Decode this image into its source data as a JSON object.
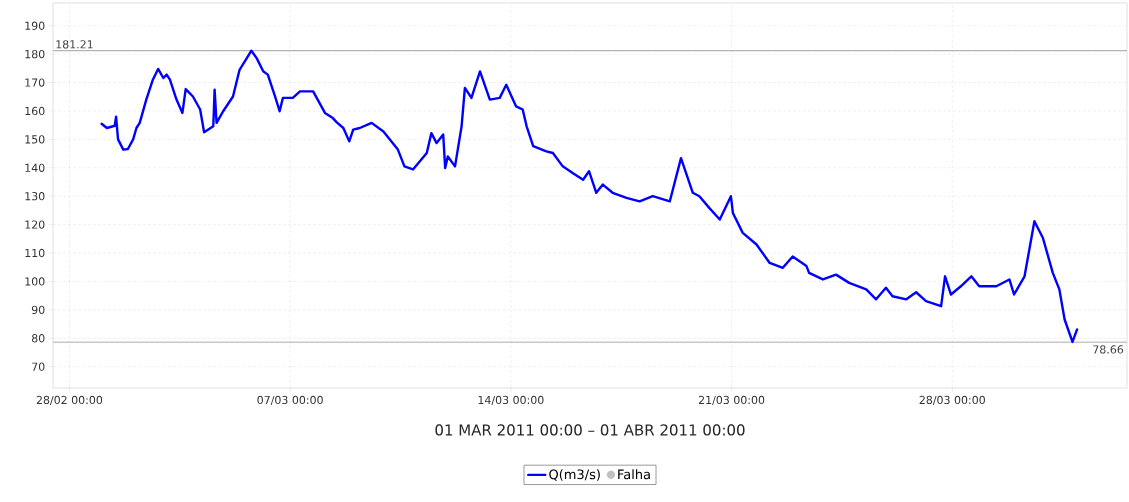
{
  "chart_data": {
    "type": "line",
    "xlabel": "01 MAR 2011 00:00 – 01 ABR 2011 00:00",
    "x": [
      "2011-03-01T00:30",
      "2011-03-01T04:30",
      "2011-03-01T10:30",
      "2011-03-01T11:30",
      "2011-03-01T13:00",
      "2011-03-01T17:00",
      "2011-03-01T20:30",
      "2011-03-02T00:30",
      "2011-03-02T03:00",
      "2011-03-02T05:30",
      "2011-03-02T10:30",
      "2011-03-02T15:30",
      "2011-03-02T19:30",
      "2011-03-02T23:30",
      "2011-03-03T02:00",
      "2011-03-03T04:30",
      "2011-03-03T09:30",
      "2011-03-03T14:00",
      "2011-03-03T16:30",
      "2011-03-03T22:00",
      "2011-03-04T03:30",
      "2011-03-04T06:30",
      "2011-03-04T13:30",
      "2011-03-04T14:30",
      "2011-03-04T16:00",
      "2011-03-04T21:00",
      "2011-03-05T04:30",
      "2011-03-05T09:30",
      "2011-03-05T18:30",
      "2011-03-05T22:30",
      "2011-03-06T03:30",
      "2011-03-06T07:00",
      "2011-03-06T12:30",
      "2011-03-06T16:00",
      "2011-03-06T18:30",
      "2011-03-07T02:00",
      "2011-03-07T07:30",
      "2011-03-07T17:30",
      "2011-03-08T02:30",
      "2011-03-08T08:30",
      "2011-03-08T11:30",
      "2011-03-08T16:30",
      "2011-03-08T21:00",
      "2011-03-09T00:00",
      "2011-03-09T05:00",
      "2011-03-09T14:00",
      "2011-03-09T23:00",
      "2011-03-10T10:00",
      "2011-03-10T15:00",
      "2011-03-10T21:30",
      "2011-03-11T08:00",
      "2011-03-11T11:30",
      "2011-03-11T15:30",
      "2011-03-11T20:30",
      "2011-03-11T22:00",
      "2011-03-12T00:00",
      "2011-03-12T05:30",
      "2011-03-12T10:30",
      "2011-03-12T13:00",
      "2011-03-12T18:00",
      "2011-03-13T00:30",
      "2011-03-13T08:00",
      "2011-03-13T15:30",
      "2011-03-13T20:30",
      "2011-03-14T04:00",
      "2011-03-14T09:00",
      "2011-03-14T12:00",
      "2011-03-14T17:00",
      "2011-03-15T03:00",
      "2011-03-15T08:00",
      "2011-03-15T15:30",
      "2011-03-15T23:00",
      "2011-03-16T07:00",
      "2011-03-16T11:30",
      "2011-03-16T17:00",
      "2011-03-16T22:00",
      "2011-03-17T05:30",
      "2011-03-17T16:00",
      "2011-03-18T02:00",
      "2011-03-18T12:00",
      "2011-03-19T01:00",
      "2011-03-19T09:30",
      "2011-03-19T18:30",
      "2011-03-19T23:30",
      "2011-03-20T07:00",
      "2011-03-20T15:00",
      "2011-03-20T23:30",
      "2011-03-21T01:00",
      "2011-03-21T08:30",
      "2011-03-21T19:00",
      "2011-03-22T05:00",
      "2011-03-22T15:00",
      "2011-03-22T22:30",
      "2011-03-23T09:00",
      "2011-03-23T11:00",
      "2011-03-23T21:30",
      "2011-03-24T07:30",
      "2011-03-24T17:30",
      "2011-03-25T06:30",
      "2011-03-25T14:00",
      "2011-03-25T21:30",
      "2011-03-26T02:30",
      "2011-03-26T13:00",
      "2011-03-26T20:30",
      "2011-03-27T04:00",
      "2011-03-27T15:30",
      "2011-03-27T18:30",
      "2011-03-27T23:00",
      "2011-03-28T06:30",
      "2011-03-28T14:30",
      "2011-03-28T20:30",
      "2011-03-29T09:30",
      "2011-03-29T19:30",
      "2011-03-29T23:00",
      "2011-03-30T07:00",
      "2011-03-30T14:30",
      "2011-03-30T21:00",
      "2011-03-31T04:30",
      "2011-03-31T09:30",
      "2011-03-31T13:30",
      "2011-03-31T19:30",
      "2011-03-31T23:00"
    ],
    "series": [
      {
        "name": "Q(m3/s)",
        "color": "#0000ff",
        "marker": "none",
        "line_style": "solid",
        "values": [
          155.5,
          154,
          154.8,
          158,
          150,
          146.4,
          146.6,
          150,
          154,
          155.8,
          164,
          171,
          174.8,
          171.6,
          172.8,
          171,
          164,
          159.3,
          167.7,
          165.1,
          160.5,
          152.5,
          154.6,
          167.5,
          155.8,
          159.9,
          165.1,
          174.5,
          181.2,
          178.6,
          174,
          172.8,
          165.1,
          159.9,
          164.6,
          164.6,
          166.9,
          166.9,
          159.3,
          157.5,
          156,
          154,
          149.3,
          153.4,
          154,
          155.8,
          152.8,
          146.4,
          140.5,
          139.4,
          145.2,
          152.2,
          148.7,
          151.7,
          139.9,
          144,
          140.5,
          154.6,
          168.1,
          164.6,
          173.9,
          164,
          164.6,
          169.2,
          161.6,
          160.5,
          154.6,
          147.6,
          145.8,
          145.2,
          140.5,
          138.2,
          135.8,
          138.8,
          131.2,
          134.1,
          131.2,
          129.4,
          128.2,
          130,
          128.2,
          143.4,
          131.2,
          130,
          125.9,
          121.8,
          130,
          124.1,
          117.1,
          113,
          106.5,
          104.8,
          108.8,
          105.4,
          103,
          100.7,
          102.4,
          99.5,
          97.2,
          93.7,
          97.8,
          94.8,
          93.7,
          96.2,
          93.1,
          91.3,
          101.8,
          95.4,
          98.3,
          101.8,
          98.3,
          98.3,
          100.7,
          95.4,
          101.8,
          121.2,
          115.3,
          103,
          97.2,
          86.6,
          78.7,
          83.1
        ]
      },
      {
        "name": "Falha",
        "color": "#c0c0c0",
        "type": "scatter",
        "marker": "circle",
        "values": [
          null,
          null,
          null,
          null,
          null,
          null,
          null,
          null,
          null,
          null,
          null,
          null,
          null,
          null,
          null,
          null,
          null,
          null,
          null,
          null,
          null,
          null,
          null,
          null,
          null,
          null,
          null,
          null,
          null,
          null,
          null,
          null,
          null,
          null,
          null,
          null,
          null,
          null,
          null,
          null,
          null,
          null,
          null,
          null,
          null,
          null,
          null,
          null,
          null,
          null,
          null,
          null,
          null,
          null,
          null,
          null,
          null,
          null,
          null,
          null,
          null,
          null,
          null,
          null,
          null,
          null,
          null,
          null,
          null,
          null,
          null,
          null,
          null,
          null,
          null,
          null,
          null,
          null,
          null,
          null,
          null,
          null,
          null,
          null,
          null,
          null,
          null,
          null,
          null,
          null,
          null,
          null,
          null,
          null,
          null,
          null,
          null,
          null,
          null,
          null,
          null,
          null,
          null,
          null,
          null,
          null,
          null,
          null,
          null,
          null,
          null,
          null,
          null,
          null,
          null,
          null,
          null,
          null,
          null,
          null,
          null,
          null
        ]
      }
    ],
    "xlim": [
      "2011-02-27T11:30",
      "2011-04-02T13:00"
    ],
    "xticks": [
      {
        "value": "2011-02-28",
        "label": "28/02 00:00"
      },
      {
        "value": "2011-03-07",
        "label": "07/03 00:00"
      },
      {
        "value": "2011-03-14",
        "label": "14/03 00:00"
      },
      {
        "value": "2011-03-21",
        "label": "21/03 00:00"
      },
      {
        "value": "2011-03-28",
        "label": "28/03 00:00"
      }
    ],
    "ylim": [
      62.5,
      198
    ],
    "yticks": [
      70,
      80,
      90,
      100,
      110,
      120,
      130,
      140,
      150,
      160,
      170,
      180,
      190
    ],
    "ref_lines": [
      {
        "axis": "y",
        "value": 181.21,
        "label": "181.21",
        "color": "#b4b4b4"
      },
      {
        "axis": "y",
        "value": 78.66,
        "label": "78.66",
        "color": "#b4b4b4"
      }
    ],
    "grid": true,
    "legend": "bottom"
  }
}
